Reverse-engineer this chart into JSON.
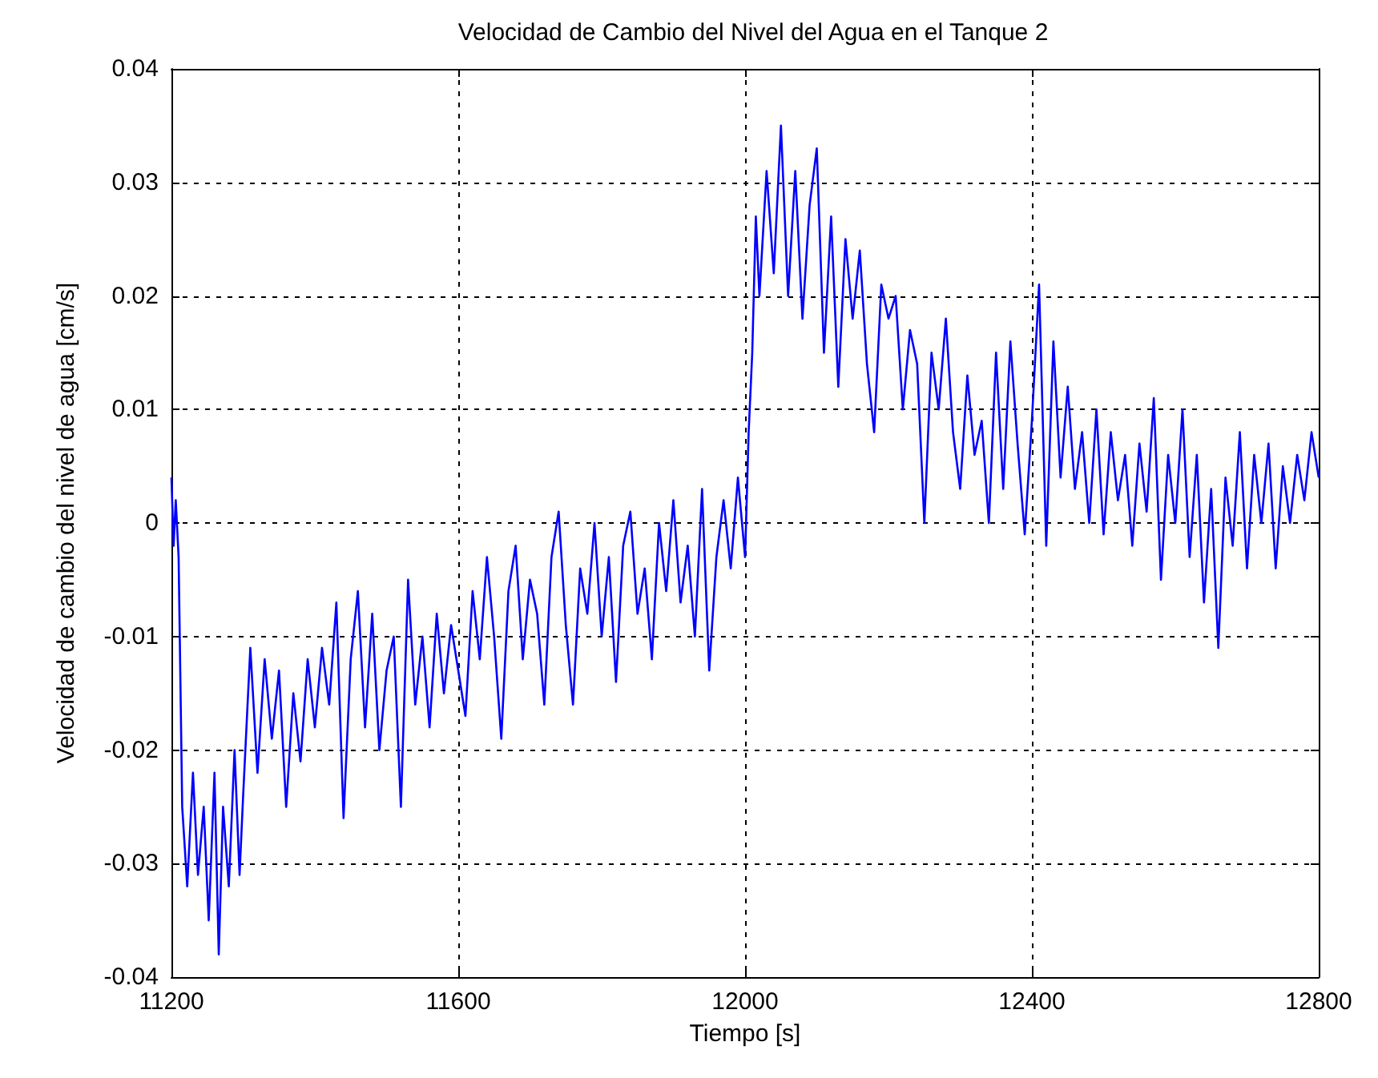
{
  "chart_data": {
    "type": "line",
    "title": "Velocidad de Cambio del Nivel del Agua en el Tanque 2",
    "xlabel": "Tiempo [s]",
    "ylabel": "Velocidad de cambio del nivel de agua [cm/s]",
    "xlim": [
      11200,
      12800
    ],
    "xticks": [
      11200,
      11600,
      12000,
      12400,
      12800
    ],
    "ylim": [
      -0.04,
      0.04
    ],
    "yticks": [
      -0.04,
      -0.03,
      -0.02,
      -0.01,
      0,
      0.01,
      0.02,
      0.03,
      0.04
    ],
    "grid": true,
    "line_style": "solid",
    "marker": "none",
    "series": [
      {
        "color": "#0000ff",
        "x": [
          11200,
          11203,
          11206,
          11210,
          11215,
          11222,
          11230,
          11237,
          11245,
          11252,
          11260,
          11266,
          11272,
          11280,
          11288,
          11295,
          11300,
          11310,
          11320,
          11330,
          11340,
          11350,
          11360,
          11370,
          11380,
          11390,
          11400,
          11410,
          11420,
          11430,
          11440,
          11450,
          11460,
          11470,
          11480,
          11490,
          11500,
          11510,
          11520,
          11530,
          11540,
          11550,
          11560,
          11570,
          11580,
          11590,
          11600,
          11610,
          11620,
          11630,
          11640,
          11650,
          11660,
          11670,
          11680,
          11690,
          11700,
          11710,
          11720,
          11730,
          11740,
          11750,
          11760,
          11770,
          11780,
          11790,
          11800,
          11810,
          11820,
          11830,
          11840,
          11850,
          11860,
          11870,
          11880,
          11890,
          11900,
          11910,
          11920,
          11930,
          11940,
          11950,
          11960,
          11970,
          11980,
          11990,
          12000,
          12005,
          12010,
          12015,
          12020,
          12030,
          12040,
          12050,
          12060,
          12070,
          12080,
          12090,
          12100,
          12110,
          12120,
          12130,
          12140,
          12150,
          12160,
          12170,
          12180,
          12190,
          12200,
          12210,
          12220,
          12230,
          12240,
          12250,
          12260,
          12270,
          12280,
          12290,
          12300,
          12310,
          12320,
          12330,
          12340,
          12350,
          12360,
          12370,
          12380,
          12390,
          12400,
          12410,
          12420,
          12430,
          12440,
          12450,
          12460,
          12470,
          12480,
          12490,
          12500,
          12510,
          12520,
          12530,
          12540,
          12550,
          12560,
          12570,
          12580,
          12590,
          12600,
          12610,
          12620,
          12630,
          12640,
          12650,
          12660,
          12670,
          12680,
          12690,
          12700,
          12710,
          12720,
          12730,
          12740,
          12750,
          12760,
          12770,
          12780,
          12790,
          12800
        ],
        "values": [
          0.004,
          -0.002,
          0.002,
          -0.003,
          -0.025,
          -0.032,
          -0.022,
          -0.031,
          -0.025,
          -0.035,
          -0.022,
          -0.038,
          -0.025,
          -0.032,
          -0.02,
          -0.031,
          -0.024,
          -0.011,
          -0.022,
          -0.012,
          -0.019,
          -0.013,
          -0.025,
          -0.015,
          -0.021,
          -0.012,
          -0.018,
          -0.011,
          -0.016,
          -0.007,
          -0.026,
          -0.012,
          -0.006,
          -0.018,
          -0.008,
          -0.02,
          -0.013,
          -0.01,
          -0.025,
          -0.005,
          -0.016,
          -0.01,
          -0.018,
          -0.008,
          -0.015,
          -0.009,
          -0.013,
          -0.017,
          -0.006,
          -0.012,
          -0.003,
          -0.01,
          -0.019,
          -0.006,
          -0.002,
          -0.012,
          -0.005,
          -0.008,
          -0.016,
          -0.003,
          0.001,
          -0.009,
          -0.016,
          -0.004,
          -0.008,
          0.0,
          -0.01,
          -0.003,
          -0.014,
          -0.002,
          0.001,
          -0.008,
          -0.004,
          -0.012,
          0.0,
          -0.006,
          0.002,
          -0.007,
          -0.002,
          -0.01,
          0.003,
          -0.013,
          -0.003,
          0.002,
          -0.004,
          0.004,
          -0.003,
          0.008,
          0.015,
          0.027,
          0.02,
          0.031,
          0.022,
          0.035,
          0.02,
          0.031,
          0.018,
          0.028,
          0.033,
          0.015,
          0.027,
          0.012,
          0.025,
          0.018,
          0.024,
          0.014,
          0.008,
          0.021,
          0.018,
          0.02,
          0.01,
          0.017,
          0.014,
          0.0,
          0.015,
          0.01,
          0.018,
          0.008,
          0.003,
          0.013,
          0.006,
          0.009,
          0.0,
          0.015,
          0.003,
          0.016,
          0.007,
          -0.001,
          0.009,
          0.021,
          -0.002,
          0.016,
          0.004,
          0.012,
          0.003,
          0.008,
          0.0,
          0.01,
          -0.001,
          0.008,
          0.002,
          0.006,
          -0.002,
          0.007,
          0.001,
          0.011,
          -0.005,
          0.006,
          0.0,
          0.01,
          -0.003,
          0.006,
          -0.007,
          0.003,
          -0.011,
          0.004,
          -0.002,
          0.008,
          -0.004,
          0.006,
          0.0,
          0.007,
          -0.004,
          0.005,
          0.0,
          0.006,
          0.002,
          0.008,
          0.004
        ]
      }
    ]
  }
}
